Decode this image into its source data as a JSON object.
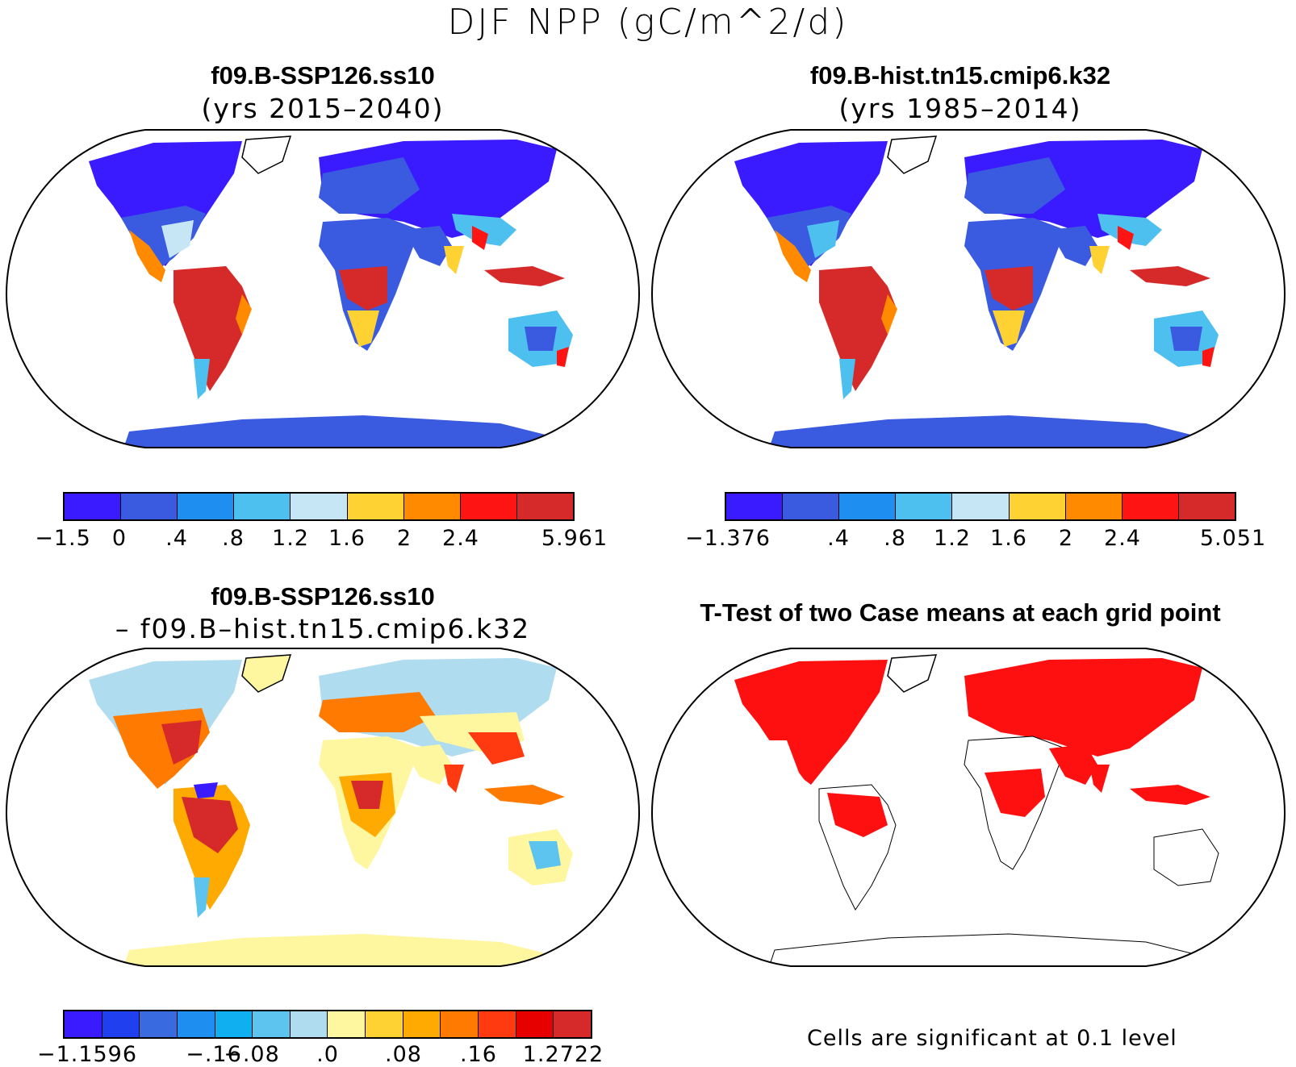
{
  "title": "DJF NPP (gC/m^2/d)",
  "panels": {
    "top_left": {
      "title": "f09.B-SSP126.ss10",
      "subtitle": "(yrs 2015–2040)",
      "colorbar": {
        "colors": [
          "#3a1aff",
          "#3a5ae0",
          "#1e8ff0",
          "#4ec0f0",
          "#c6e6f6",
          "#ffd233",
          "#ff8a00",
          "#ff1414",
          "#d62a2a"
        ],
        "tick_labels": [
          "−1.5",
          "0",
          ".4",
          ".8",
          "1.2",
          "1.6",
          "2",
          "2.4",
          "5.961"
        ]
      }
    },
    "top_right": {
      "title": "f09.B-hist.tn15.cmip6.k32",
      "subtitle": "(yrs 1985–2014)",
      "colorbar": {
        "colors": [
          "#3a1aff",
          "#3a5ae0",
          "#1e8ff0",
          "#4ec0f0",
          "#c6e6f6",
          "#ffd233",
          "#ff8a00",
          "#ff1414",
          "#d62a2a"
        ],
        "tick_labels": [
          "−1.376",
          ".4",
          ".8",
          "1.2",
          "1.6",
          "2",
          "2.4",
          "5.051"
        ]
      }
    },
    "bottom_left": {
      "title": "f09.B-SSP126.ss10",
      "subtitle": "– f09.B–hist.tn15.cmip6.k32",
      "colorbar": {
        "colors": [
          "#3a1aff",
          "#2040f0",
          "#3a6ae0",
          "#1e8ff0",
          "#10b0f0",
          "#5cc4ee",
          "#b0dcf0",
          "#fff6a0",
          "#ffd233",
          "#ffaa00",
          "#ff7a00",
          "#ff3a10",
          "#e60000",
          "#d62a2a"
        ],
        "tick_labels": [
          "−1.1596",
          "−.16",
          "−.08",
          ".0",
          ".08",
          ".16",
          "1.2722"
        ]
      }
    },
    "bottom_right": {
      "title": "T-Test of two Case means at each grid point",
      "note": "Cells are significant at 0.1 level"
    }
  },
  "map_colors": {
    "ocean": "#ffffff",
    "outline": "#000000",
    "cold": "#3a1aff",
    "mid_blue": "#3a5ae0",
    "light_blue": "#4ec0f0",
    "tropical_high": "#d62a2a",
    "orange": "#ff8a00",
    "diff_pale": "#fff6a0",
    "significant": "#ff1010"
  }
}
